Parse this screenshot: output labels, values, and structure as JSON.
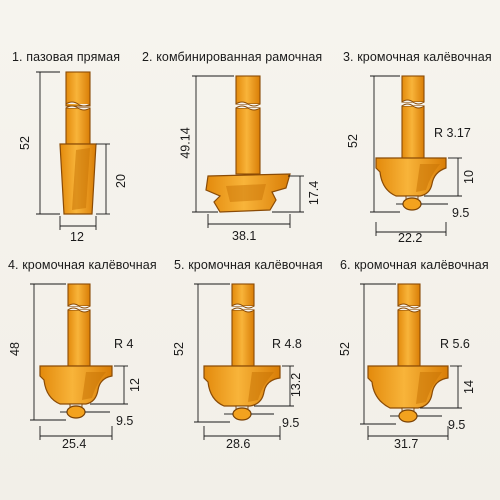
{
  "items": [
    {
      "caption": "1. пазовая прямая",
      "height_label": "52",
      "cut_height_label": "20",
      "width_label": "12"
    },
    {
      "caption": "2. комбинированная рамочная",
      "height_label": "49.14",
      "cut_height_label": "17.4",
      "width_label": "38.1"
    },
    {
      "caption": "3. кромочная калёвочная",
      "height_label": "52",
      "cut_height_label": "10",
      "width_label": "22.2",
      "radius_label": "R 3.17",
      "bearing_label": "9.5"
    },
    {
      "caption": "4. кромочная калёвочная",
      "height_label": "48",
      "cut_height_label": "12",
      "width_label": "25.4",
      "radius_label": "R 4",
      "bearing_label": "9.5"
    },
    {
      "caption": "5. кромочная калёвочная",
      "height_label": "52",
      "cut_height_label": "13.2",
      "width_label": "28.6",
      "radius_label": "R 4.8",
      "bearing_label": "9.5"
    },
    {
      "caption": "6. кромочная калёвочная",
      "height_label": "52",
      "cut_height_label": "14",
      "width_label": "31.7",
      "radius_label": "R 5.6",
      "bearing_label": "9.5"
    }
  ],
  "colors": {
    "cutter": "#f3a21e",
    "outline": "#8a4b06",
    "text": "#1a1a1a",
    "background": "#f6f4ee"
  }
}
